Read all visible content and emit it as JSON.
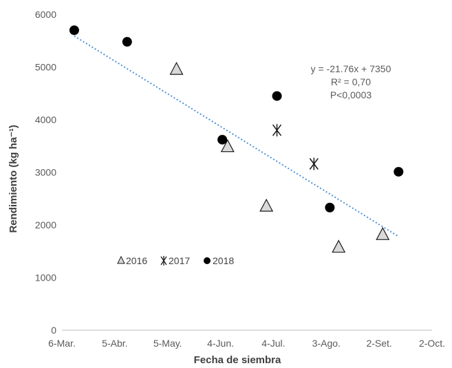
{
  "chart_data": {
    "type": "scatter",
    "title": "",
    "xlabel": "Fecha de siembra",
    "ylabel": "Rendimiento (kg ha⁻¹)",
    "x_axis": {
      "kind": "date",
      "ticks": [
        {
          "date": "2018-03-06",
          "label": "6-Mar."
        },
        {
          "date": "2018-04-05",
          "label": "5-Abr."
        },
        {
          "date": "2018-05-05",
          "label": "5-May."
        },
        {
          "date": "2018-06-04",
          "label": "4-Jun."
        },
        {
          "date": "2018-07-04",
          "label": "4-Jul."
        },
        {
          "date": "2018-08-03",
          "label": "3-Ago."
        },
        {
          "date": "2018-09-02",
          "label": "2-Set."
        },
        {
          "date": "2018-10-02",
          "label": "2-Oct."
        }
      ],
      "xlim": [
        "2018-03-06",
        "2018-10-02"
      ]
    },
    "y_axis": {
      "ylim": [
        0,
        6000
      ],
      "ticks": [
        0,
        1000,
        2000,
        3000,
        4000,
        5000,
        6000
      ]
    },
    "grid": false,
    "legend": {
      "placement": "left-middle",
      "entries": [
        "2016",
        "2017",
        "2018"
      ]
    },
    "series": [
      {
        "name": "2016",
        "marker": "triangle",
        "points": [
          {
            "x": "2018-05-10",
            "y": 4950
          },
          {
            "x": "2018-06-08",
            "y": 3480
          },
          {
            "x": "2018-06-30",
            "y": 2350
          },
          {
            "x": "2018-08-10",
            "y": 1570
          },
          {
            "x": "2018-09-04",
            "y": 1810
          }
        ]
      },
      {
        "name": "2017",
        "marker": "asterisk",
        "points": [
          {
            "x": "2018-07-06",
            "y": 3800
          },
          {
            "x": "2018-07-27",
            "y": 3160
          }
        ]
      },
      {
        "name": "2018",
        "marker": "circle",
        "points": [
          {
            "x": "2018-03-13",
            "y": 5700
          },
          {
            "x": "2018-04-12",
            "y": 5480
          },
          {
            "x": "2018-06-05",
            "y": 3620
          },
          {
            "x": "2018-07-06",
            "y": 4450
          },
          {
            "x": "2018-08-05",
            "y": 2330
          },
          {
            "x": "2018-09-13",
            "y": 3010
          }
        ]
      }
    ],
    "trendline": {
      "style": "dotted",
      "color": "#4a90d9",
      "from": {
        "x": "2018-03-13",
        "y": 5590
      },
      "to": {
        "x": "2018-09-13",
        "y": 1780
      }
    },
    "annotations": [
      "y = -21.76x + 7350",
      "R² = 0,70",
      "P<0,0003"
    ],
    "colors": {
      "marker_fill_circle": "#000000",
      "marker_fill_triangle": "#d9d9d9",
      "marker_stroke": "#1a1a1a",
      "axis": "#bfbfbf",
      "trendline": "#4a90d9"
    }
  }
}
